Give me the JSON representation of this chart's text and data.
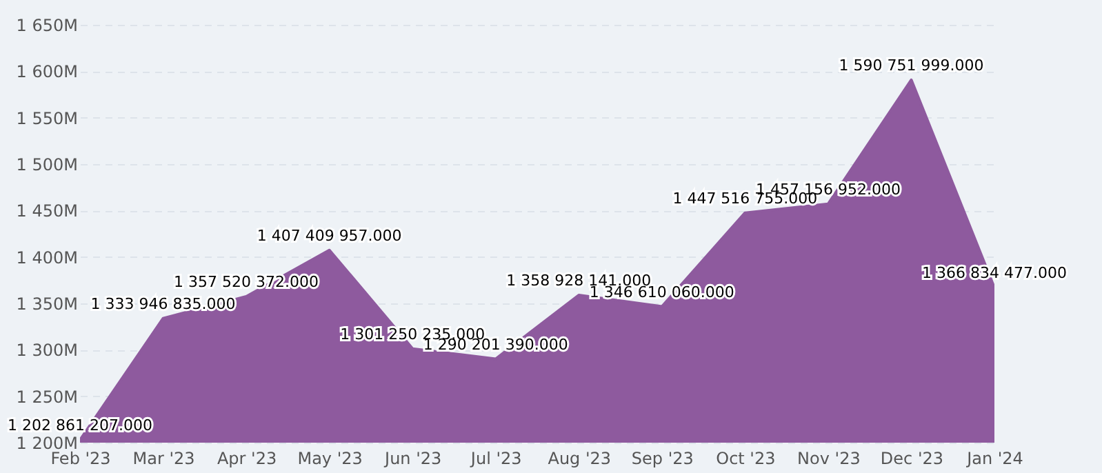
{
  "chart_data": {
    "type": "area",
    "categories": [
      "Feb '23",
      "Mar '23",
      "Apr '23",
      "May '23",
      "Jun '23",
      "Jul '23",
      "Aug '23",
      "Sep '23",
      "Oct '23",
      "Nov '23",
      "Dec '23",
      "Jan '24"
    ],
    "series": [
      {
        "color": "#8e5a9e",
        "values": [
          1202861207,
          1333946835,
          1357520372,
          1407409957,
          1301250235,
          1290201390,
          1358928141,
          1346610060,
          1447516755,
          1457156952,
          1590751999,
          1366834477
        ],
        "value_labels": [
          "1 202 861 207.000",
          "1 333 946 835.000",
          "1 357 520 372.000",
          "1 407 409 957.000",
          "1 301 250 235.000",
          "1 290 201 390.000",
          "1 358 928 141.000",
          "1 346 610 060.000",
          "1 447 516 755.000",
          "1 457 156 952.000",
          "1 590 751 999.000",
          "1 366 834 477.000"
        ]
      }
    ],
    "ylim": [
      1200000000,
      1650000000
    ],
    "yticks": [
      {
        "value": 1200000000,
        "label": "1 200M"
      },
      {
        "value": 1250000000,
        "label": "1 250M"
      },
      {
        "value": 1300000000,
        "label": "1 300M"
      },
      {
        "value": 1350000000,
        "label": "1 350M"
      },
      {
        "value": 1400000000,
        "label": "1 400M"
      },
      {
        "value": 1450000000,
        "label": "1 450M"
      },
      {
        "value": 1500000000,
        "label": "1 500M"
      },
      {
        "value": 1550000000,
        "label": "1 550M"
      },
      {
        "value": 1600000000,
        "label": "1 600M"
      },
      {
        "value": 1650000000,
        "label": "1 650M"
      }
    ],
    "grid": "y"
  }
}
